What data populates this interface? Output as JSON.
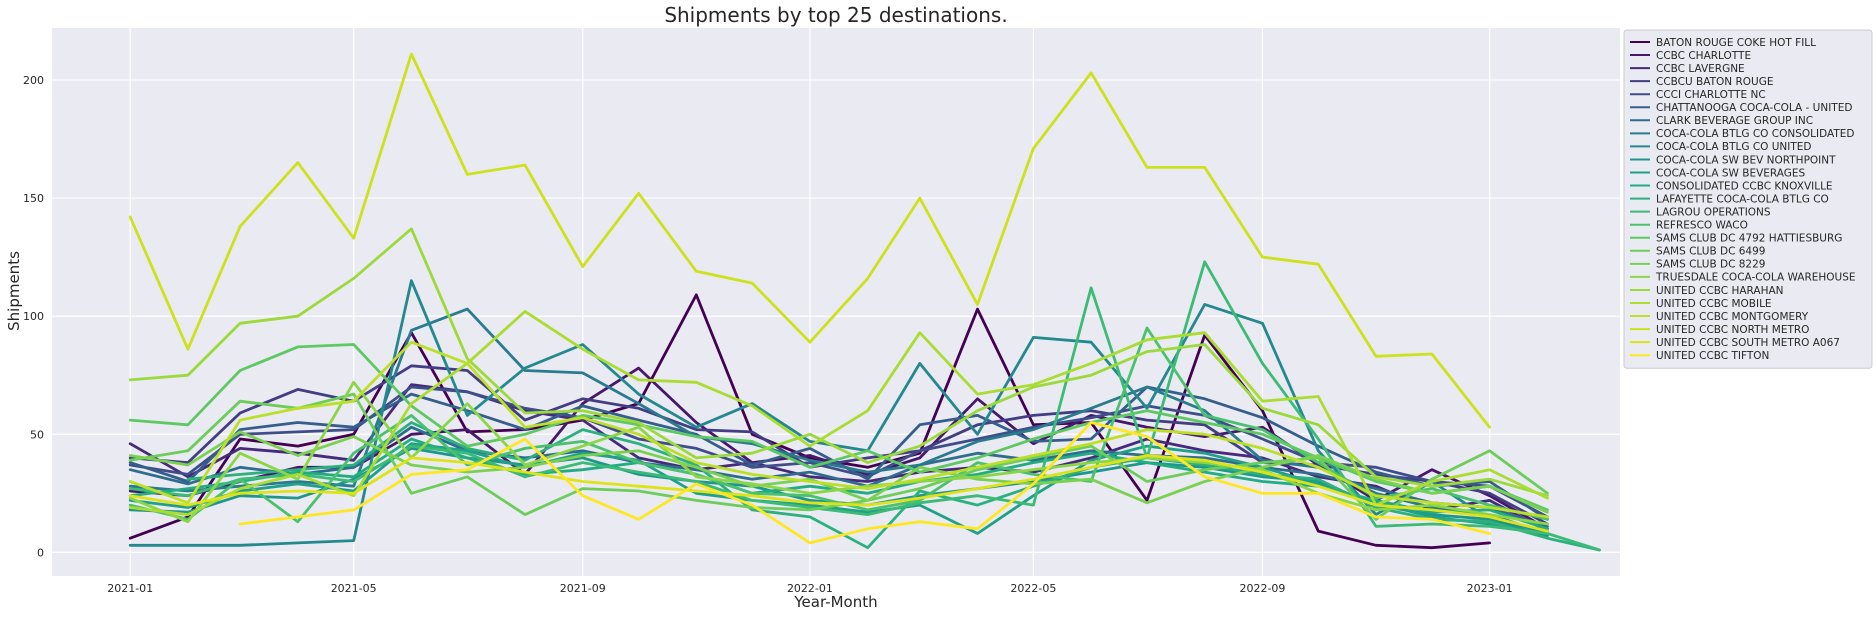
{
  "chart_data": {
    "type": "line",
    "title": "Shipments by top 25 destinations.",
    "xlabel": "Year-Month",
    "ylabel": "Shipments",
    "x_start": "2021-01",
    "x_ticks": [
      "2021-01",
      "2021-05",
      "2021-09",
      "2022-01",
      "2022-05",
      "2022-09",
      "2023-01"
    ],
    "y_ticks": [
      0,
      50,
      100,
      150,
      200
    ],
    "xlim": [
      "2020-11-20",
      "2023-03-12"
    ],
    "ylim": [
      -10,
      222
    ],
    "grid": true,
    "legend": "outside-right",
    "series": [
      {
        "name": "BATON ROUGE COKE HOT FILL",
        "color": "#440154",
        "values": [
          6,
          15,
          48,
          45,
          50,
          93,
          51,
          52,
          56,
          63,
          109,
          50,
          40,
          36,
          42,
          103,
          54,
          55,
          22,
          92,
          60,
          9,
          3,
          2,
          4,
          null,
          null
        ]
      },
      {
        "name": "CCBC CHARLOTTE",
        "color": "#481769",
        "values": [
          26,
          24,
          30,
          36,
          36,
          50,
          52,
          33,
          63,
          78,
          55,
          38,
          41,
          33,
          40,
          65,
          46,
          58,
          53,
          49,
          53,
          37,
          22,
          35,
          24,
          10,
          null
        ]
      },
      {
        "name": "CCBC LAVERGNE",
        "color": "#472a7a",
        "values": [
          46,
          32,
          44,
          42,
          39,
          71,
          68,
          60,
          56,
          40,
          35,
          38,
          32,
          30,
          34,
          36,
          34,
          40,
          48,
          43,
          40,
          32,
          28,
          18,
          22,
          9,
          null
        ]
      },
      {
        "name": "CCBCU BATON ROUGE",
        "color": "#433d84",
        "values": [
          40,
          38,
          59,
          69,
          64,
          79,
          77,
          56,
          65,
          61,
          52,
          51,
          36,
          40,
          43,
          54,
          58,
          60,
          56,
          54,
          38,
          37,
          33,
          30,
          25,
          12,
          null
        ]
      },
      {
        "name": "CCCI CHARLOTTE NC",
        "color": "#3d4e8a",
        "values": [
          37,
          33,
          50,
          51,
          52,
          70,
          68,
          61,
          57,
          48,
          44,
          36,
          38,
          32,
          43,
          48,
          53,
          57,
          62,
          58,
          48,
          38,
          36,
          30,
          28,
          15,
          null
        ]
      },
      {
        "name": "CHATTANOOGA COCA-COLA - UNITED",
        "color": "#355e8d",
        "values": [
          38,
          30,
          52,
          55,
          53,
          67,
          60,
          52,
          62,
          56,
          50,
          37,
          44,
          31,
          54,
          58,
          47,
          48,
          70,
          65,
          57,
          45,
          34,
          28,
          30,
          14,
          null
        ]
      },
      {
        "name": "CLARK BEVERAGE GROUP INC",
        "color": "#2e6d8e",
        "values": [
          35,
          29,
          36,
          33,
          36,
          53,
          43,
          40,
          43,
          38,
          35,
          31,
          34,
          28,
          37,
          42,
          39,
          43,
          41,
          40,
          36,
          33,
          27,
          21,
          19,
          11,
          null
        ]
      },
      {
        "name": "COCA-COLA BTLG CO CONSOLIDATED",
        "color": "#297b8e",
        "values": [
          28,
          26,
          28,
          30,
          28,
          94,
          103,
          77,
          76,
          63,
          49,
          46,
          39,
          34,
          37,
          47,
          52,
          61,
          70,
          60,
          39,
          36,
          25,
          19,
          16,
          8,
          null
        ]
      },
      {
        "name": "COCA-COLA BTLG CO UNITED",
        "color": "#23898e",
        "values": [
          3,
          3,
          3,
          4,
          5,
          115,
          58,
          78,
          88,
          67,
          53,
          63,
          47,
          43,
          80,
          50,
          91,
          89,
          61,
          105,
          97,
          43,
          16,
          30,
          14,
          9,
          null
        ]
      },
      {
        "name": "COCA-COLA SW BEV NORTHPOINT",
        "color": "#1f968b",
        "values": [
          18,
          17,
          24,
          23,
          31,
          44,
          40,
          37,
          40,
          33,
          30,
          28,
          22,
          20,
          24,
          27,
          30,
          34,
          38,
          36,
          32,
          30,
          20,
          16,
          14,
          7,
          null
        ]
      },
      {
        "name": "COCA-COLA SW BEVERAGES",
        "color": "#1fa187",
        "values": [
          22,
          19,
          26,
          29,
          26,
          46,
          43,
          36,
          42,
          39,
          25,
          22,
          20,
          17,
          20,
          8,
          24,
          39,
          45,
          42,
          36,
          29,
          21,
          15,
          12,
          8,
          null
        ]
      },
      {
        "name": "CONSOLIDATED CCBC KNOXVILLE",
        "color": "#21ac82",
        "values": [
          24,
          27,
          30,
          34,
          32,
          48,
          40,
          33,
          35,
          38,
          33,
          25,
          28,
          25,
          30,
          33,
          38,
          42,
          38,
          34,
          30,
          28,
          22,
          17,
          18,
          10,
          null
        ]
      },
      {
        "name": "LAFAYETTE COCA-COLA BTLG CO",
        "color": "#2cb17e",
        "values": [
          null,
          31,
          33,
          35,
          37,
          55,
          44,
          39,
          52,
          46,
          37,
          18,
          15,
          2,
          26,
          20,
          28,
          36,
          40,
          37,
          33,
          31,
          19,
          14,
          13,
          6,
          1
        ]
      },
      {
        "name": "LAGROU OPERATIONS",
        "color": "#3bbb75",
        "values": [
          27,
          24,
          31,
          33,
          30,
          45,
          42,
          32,
          38,
          34,
          30,
          22,
          19,
          16,
          21,
          24,
          20,
          112,
          40,
          123,
          80,
          48,
          11,
          12,
          11,
          8,
          1
        ]
      },
      {
        "name": "REFRESCO WACO",
        "color": "#4ac16d",
        "values": [
          20,
          14,
          31,
          13,
          42,
          58,
          37,
          44,
          47,
          38,
          33,
          25,
          24,
          18,
          22,
          38,
          33,
          30,
          95,
          58,
          52,
          38,
          23,
          27,
          20,
          14,
          null
        ]
      },
      {
        "name": "SAMS CLUB DC 4792 HATTIESBURG",
        "color": "#5ec962",
        "values": [
          56,
          54,
          77,
          87,
          88,
          62,
          45,
          50,
          58,
          54,
          49,
          47,
          36,
          43,
          34,
          40,
          48,
          55,
          60,
          55,
          50,
          40,
          30,
          25,
          28,
          18,
          null
        ]
      },
      {
        "name": "SAMS CLUB DC 6499",
        "color": "#6ccd5a",
        "values": [
          39,
          43,
          64,
          61,
          67,
          25,
          32,
          16,
          27,
          26,
          22,
          19,
          18,
          22,
          27,
          35,
          40,
          45,
          30,
          35,
          38,
          40,
          14,
          31,
          43,
          25,
          null
        ]
      },
      {
        "name": "SAMS CLUB DC 8229",
        "color": "#7ad151",
        "values": [
          41,
          37,
          51,
          41,
          49,
          37,
          34,
          36,
          41,
          43,
          36,
          28,
          31,
          22,
          36,
          31,
          29,
          31,
          21,
          30,
          36,
          41,
          31,
          25,
          28,
          17,
          null
        ]
      },
      {
        "name": "TRUESDALE COCA-COLA WAREHOUSE",
        "color": "#8bd646",
        "values": [
          23,
          13,
          42,
          31,
          72,
          40,
          63,
          37,
          45,
          53,
          32,
          29,
          25,
          28,
          30,
          32,
          35,
          38,
          40,
          38,
          35,
          25,
          18,
          20,
          16,
          12,
          null
        ]
      },
      {
        "name": "UNITED CCBC HARAHAN",
        "color": "#9cd93b",
        "values": [
          73,
          75,
          97,
          100,
          116,
          137,
          82,
          59,
          60,
          55,
          40,
          42,
          50,
          38,
          45,
          60,
          70,
          75,
          85,
          88,
          61,
          54,
          32,
          28,
          31,
          24,
          null
        ]
      },
      {
        "name": "UNITED CCBC MOBILE",
        "color": "#aadc32",
        "values": [
          19,
          16,
          27,
          33,
          24,
          63,
          80,
          102,
          86,
          73,
          72,
          62,
          45,
          60,
          93,
          67,
          71,
          80,
          90,
          93,
          64,
          66,
          20,
          30,
          35,
          23,
          null
        ]
      },
      {
        "name": "UNITED CCBC MONTGOMERY",
        "color": "#bcdf27",
        "values": [
          30,
          21,
          56,
          61,
          64,
          89,
          80,
          53,
          57,
          50,
          38,
          33,
          30,
          27,
          31,
          36,
          41,
          46,
          52,
          50,
          44,
          36,
          24,
          21,
          19,
          15,
          null
        ]
      },
      {
        "name": "UNITED CCBC NORTH METRO",
        "color": "#cde11d",
        "values": [
          142,
          86,
          138,
          165,
          133,
          211,
          160,
          164,
          121,
          152,
          119,
          114,
          89,
          116,
          150,
          105,
          171,
          203,
          163,
          163,
          125,
          122,
          83,
          84,
          53,
          null,
          null
        ]
      },
      {
        "name": "UNITED CCBC SOUTH METRO A067",
        "color": "#dde318",
        "values": [
          24,
          20,
          25,
          26,
          25,
          40,
          38,
          34,
          30,
          28,
          26,
          24,
          21,
          20,
          23,
          27,
          31,
          36,
          41,
          39,
          34,
          28,
          20,
          18,
          15,
          9,
          null
        ]
      },
      {
        "name": "UNITED CCBC TIFTON",
        "color": "#fde725",
        "values": [
          null,
          null,
          12,
          15,
          18,
          33,
          35,
          48,
          24,
          14,
          29,
          20,
          4,
          10,
          13,
          10,
          29,
          55,
          49,
          32,
          25,
          25,
          15,
          14,
          8,
          null,
          null
        ]
      }
    ]
  }
}
